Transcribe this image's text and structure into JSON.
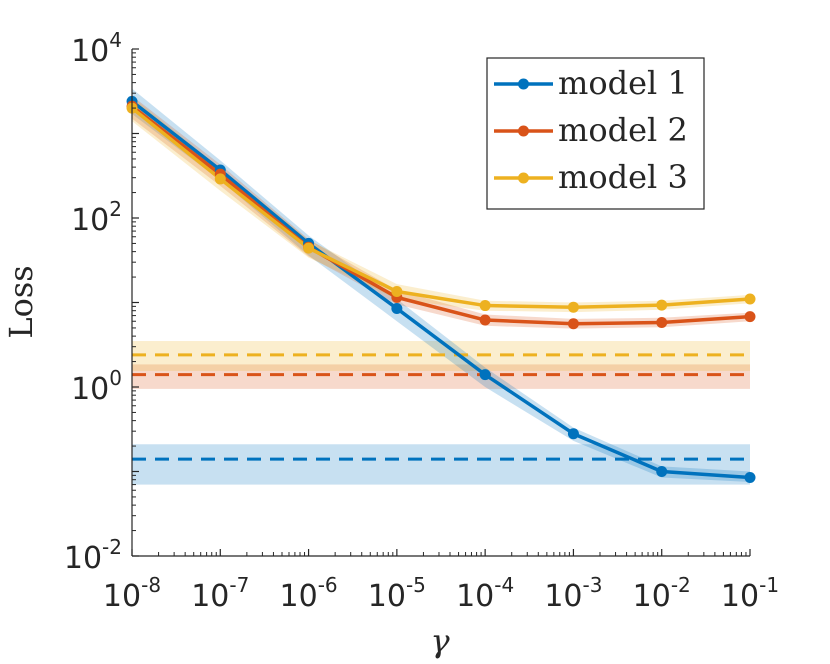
{
  "chart_data": {
    "type": "line",
    "xscale": "log",
    "yscale": "log",
    "x": [
      1e-08,
      1e-07,
      1e-06,
      1e-05,
      0.0001,
      0.001,
      0.01,
      0.1
    ],
    "xlim": [
      1e-08,
      0.1
    ],
    "ylim": [
      0.01,
      10000
    ],
    "xlabel": "γ",
    "ylabel": "Loss",
    "xtick_labels": [
      {
        "base": "10",
        "exp": "-8"
      },
      {
        "base": "10",
        "exp": "-7"
      },
      {
        "base": "10",
        "exp": "-6"
      },
      {
        "base": "10",
        "exp": "-5"
      },
      {
        "base": "10",
        "exp": "-4"
      },
      {
        "base": "10",
        "exp": "-3"
      },
      {
        "base": "10",
        "exp": "-2"
      },
      {
        "base": "10",
        "exp": "-1"
      }
    ],
    "ytick_values": [
      0.01,
      1,
      100,
      10000
    ],
    "ytick_labels": [
      {
        "base": "10",
        "exp": "-2"
      },
      {
        "base": "10",
        "exp": "0"
      },
      {
        "base": "10",
        "exp": "2"
      },
      {
        "base": "10",
        "exp": "4"
      }
    ],
    "series": [
      {
        "name": "model 1",
        "color": "#0072BD",
        "values": [
          2400,
          370,
          50,
          8.5,
          1.4,
          0.28,
          0.1,
          0.085
        ],
        "band_lower": [
          1700,
          280,
          36,
          6,
          1.0,
          0.23,
          0.085,
          0.075
        ],
        "band_upper": [
          3400,
          480,
          62,
          11,
          1.7,
          0.33,
          0.115,
          0.1
        ],
        "baseline": 0.14,
        "baseline_band": [
          0.07,
          0.21
        ]
      },
      {
        "name": "model 2",
        "color": "#D95319",
        "values": [
          2100,
          330,
          45,
          11.5,
          6.2,
          5.6,
          5.8,
          6.8
        ],
        "band_lower": [
          1500,
          240,
          35,
          9.5,
          5.3,
          4.9,
          5.1,
          6.0
        ],
        "band_upper": [
          2800,
          430,
          56,
          14,
          7.2,
          6.4,
          6.6,
          7.6
        ],
        "baseline": 1.4,
        "baseline_band": [
          0.95,
          1.85
        ]
      },
      {
        "name": "model 3",
        "color": "#EDB120",
        "values": [
          2000,
          290,
          44,
          13.5,
          9.2,
          8.8,
          9.3,
          11
        ],
        "band_lower": [
          1400,
          210,
          34,
          11,
          8,
          7.7,
          8.2,
          9.8
        ],
        "band_upper": [
          2700,
          390,
          55,
          16.5,
          10.5,
          10,
          10.5,
          12.3
        ],
        "baseline": 2.4,
        "baseline_band": [
          1.55,
          3.5
        ]
      }
    ],
    "legend_position": "top-right"
  }
}
